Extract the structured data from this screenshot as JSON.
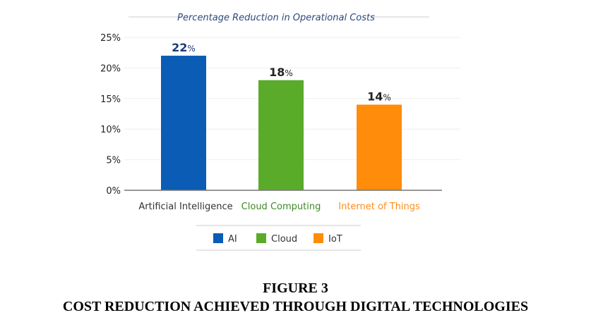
{
  "chart_data": {
    "type": "bar",
    "title": "Percentage Reduction in Operational Costs",
    "categories": [
      "Artificial Intelligence",
      "Cloud Computing",
      "Internet of Things"
    ],
    "values": [
      22,
      18,
      14
    ],
    "data_labels": [
      "22",
      "18",
      "14"
    ],
    "label_suffix": "%",
    "ylim": [
      0,
      25
    ],
    "yticks": [
      "0%",
      "5%",
      "10%",
      "15%",
      "20%",
      "25%"
    ],
    "ytick_values": [
      0,
      5,
      10,
      15,
      20,
      25
    ],
    "xlabel": "",
    "ylabel": "",
    "grid": true,
    "colors": [
      "#0a5cb5",
      "#5aab2a",
      "#ff8c0a"
    ],
    "category_label_colors": [
      "#333333",
      "#3e8a23",
      "#ff8c1a"
    ],
    "legend": {
      "position": "bottom",
      "entries": [
        "AI",
        "Cloud",
        "IoT"
      ]
    }
  },
  "figure": {
    "number": "FIGURE 3",
    "caption": "COST REDUCTION ACHIEVED THROUGH DIGITAL TECHNOLOGIES"
  }
}
